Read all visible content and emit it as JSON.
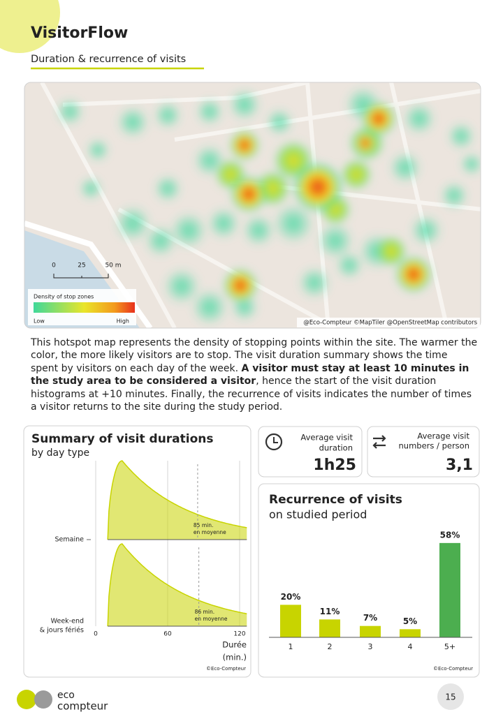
{
  "header": {
    "title": "VisitorFlow",
    "subtitle": "Duration & recurrence of visits"
  },
  "map": {
    "scale_labels": [
      "0",
      "25",
      "50 m"
    ],
    "legend_title": "Density of stop zones",
    "legend_low": "Low",
    "legend_high": "High",
    "attribution": "@Eco-Compteur ©MapTiler @OpenStreetMap contributors"
  },
  "body_text": [
    "This hotspot map represents the density of stopping points within the site. The warmer the color, the more likely visitors are to stop. The visit duration summary shows the time spent by visitors on each day of the week. ",
    "A visitor must stay at least 10 minutes in the study area to be considered a visitor",
    ", hence the start of the visit duration histograms at +10 minutes. Finally, the recurrence of visits indicates the number of times a visitor returns to the site during the study period."
  ],
  "duration_chart": {
    "title": "Summary of visit durations",
    "subtitle": "by day type",
    "series": [
      {
        "name": [
          "Semaine"
        ],
        "mean": 85,
        "annotation": [
          "85 min.",
          "en moyenne"
        ]
      },
      {
        "name": [
          "Week-end",
          "& jours fériés"
        ],
        "mean": 86,
        "annotation": [
          "86 min.",
          "en moyenne"
        ]
      }
    ],
    "xlim": [
      0,
      120
    ],
    "xticks": [
      0,
      60,
      120
    ],
    "xlabel": [
      "Durée",
      "(min.)"
    ],
    "color": "#c8d400",
    "credit": "©Eco-Compteur"
  },
  "kpis": [
    {
      "label": [
        "Average visit",
        "duration"
      ],
      "value": "1h25"
    },
    {
      "label": [
        "Average visit",
        "numbers / person"
      ],
      "value": "3,1"
    }
  ],
  "recurrence_chart": {
    "type": "bar",
    "title": "Recurrence of visits",
    "subtitle": "on studied period",
    "categories": [
      "1",
      "2",
      "3",
      "4",
      "5+"
    ],
    "values": [
      20,
      11,
      7,
      5,
      58
    ],
    "value_labels": [
      "20%",
      "11%",
      "7%",
      "5%",
      "58%"
    ],
    "colors": [
      "#c8d400",
      "#c8d400",
      "#c8d400",
      "#c8d400",
      "#4cae4f"
    ],
    "credit": "©Eco-Compteur"
  },
  "footer": {
    "brand": [
      "eco",
      "compteur"
    ],
    "page": "15"
  }
}
